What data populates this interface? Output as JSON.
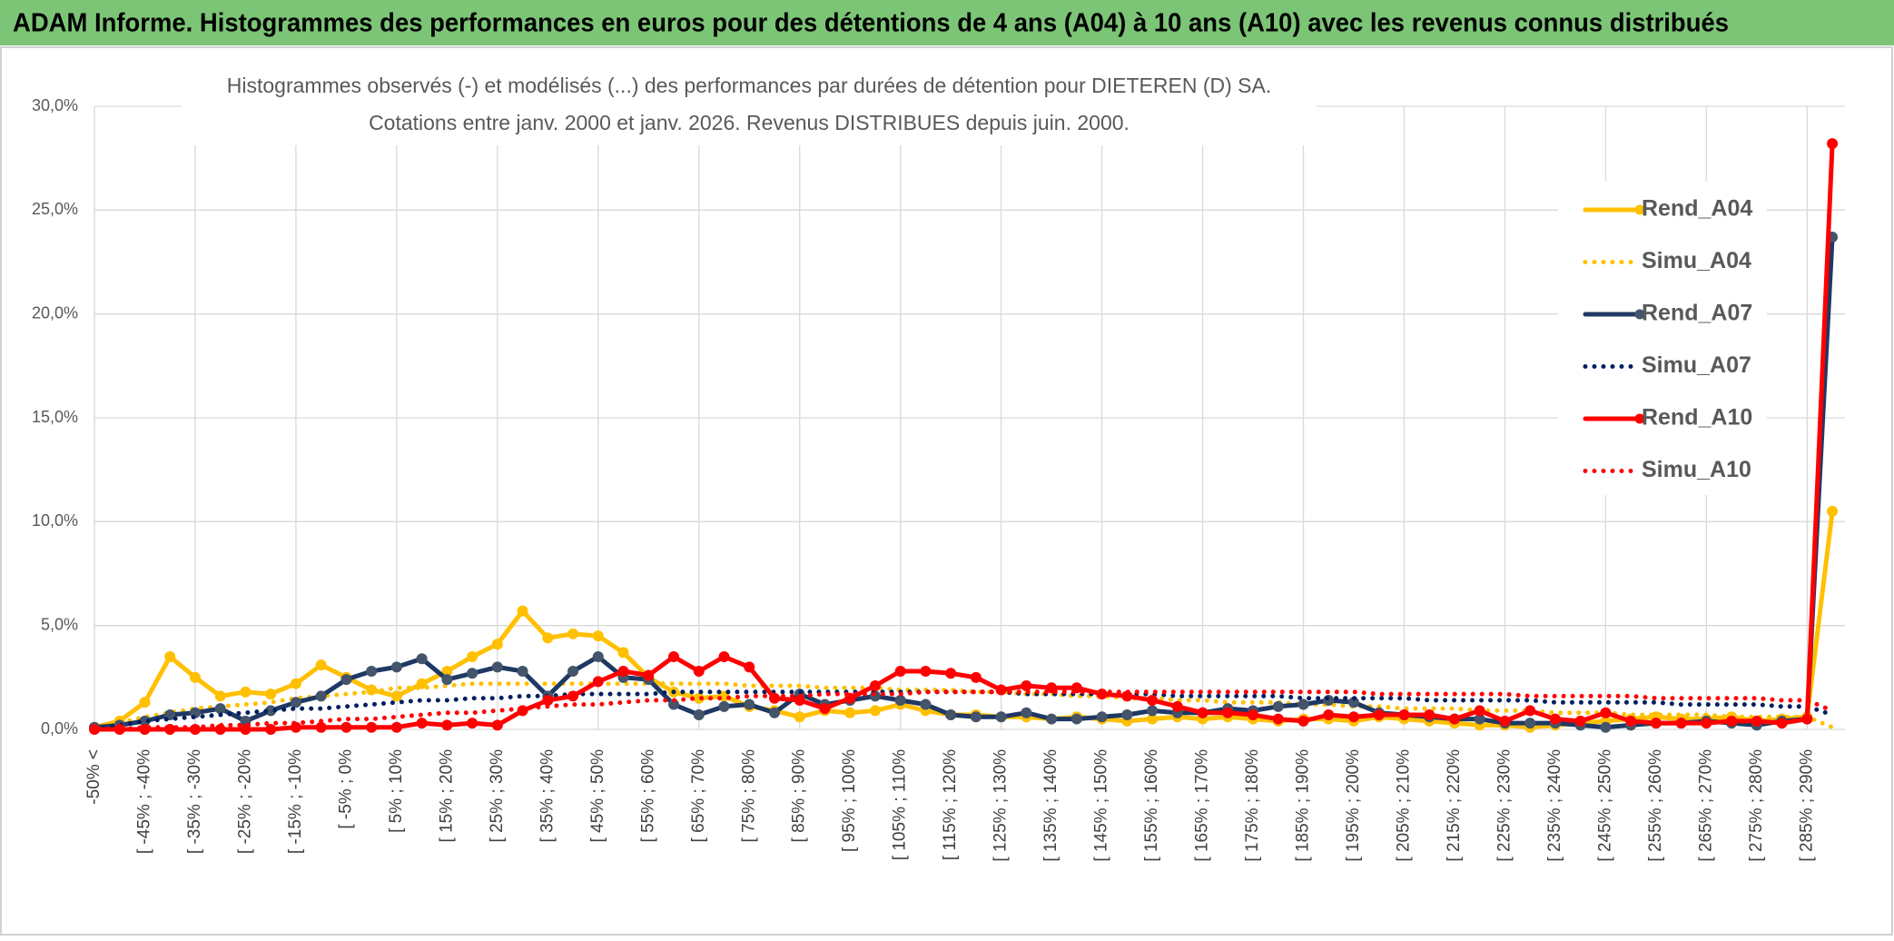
{
  "chart_data": {
    "type": "line",
    "title": "ADAM Informe. Histogrammes des performances en euros pour des détentions de 4 ans (A04) à 10 ans (A10) avec les revenus connus distribués",
    "subtitle": [
      "Histogrammes observés (-) et modélisés (...) des performances par durées de détention pour DIETEREN (D) SA.",
      "Cotations entre janv. 2000 et janv. 2026. Revenus DISTRIBUES depuis juin. 2000."
    ],
    "categories": [
      "-50% <",
      null,
      "[ -45% ; -40%",
      null,
      "[ -35% ; -30%",
      null,
      "[ -25% ; -20%",
      null,
      "[ -15% ; -10%",
      null,
      "[ -5% ; 0%",
      null,
      "[ 5% ; 10%",
      null,
      "[ 15% ; 20%",
      null,
      "[ 25% ; 30%",
      null,
      "[ 35% ; 40%",
      null,
      "[ 45% ; 50%",
      null,
      "[ 55% ; 60%",
      null,
      "[ 65% ; 70%",
      null,
      "[ 75% ; 80%",
      null,
      "[ 85% ; 90%",
      null,
      "[ 95% ; 100%",
      null,
      "[ 105% ; 110%",
      null,
      "[ 115% ; 120%",
      null,
      "[ 125% ; 130%",
      null,
      "[ 135% ; 140%",
      null,
      "[ 145% ; 150%",
      null,
      "[ 155% ; 160%",
      null,
      "[ 165% ; 170%",
      null,
      "[ 175% ; 180%",
      null,
      "[ 185% ; 190%",
      null,
      "[ 195% ; 200%",
      null,
      "[ 205% ; 210%",
      null,
      "[ 215% ; 220%",
      null,
      "[ 225% ; 230%",
      null,
      "[ 235% ; 240%",
      null,
      "[ 245% ; 250%",
      null,
      "[ 255% ; 260%",
      null,
      "[ 265% ; 270%",
      null,
      "[ 275% ; 280%",
      null,
      "[ 285% ; 290%",
      null
    ],
    "ylim": [
      0,
      30
    ],
    "yticks": [
      {
        "value": 0,
        "label": "0,0%"
      },
      {
        "value": 5,
        "label": "5,0%"
      },
      {
        "value": 10,
        "label": "10,0%"
      },
      {
        "value": 15,
        "label": "15,0%"
      },
      {
        "value": 20,
        "label": "20,0%"
      },
      {
        "value": 25,
        "label": "25,0%"
      },
      {
        "value": 30,
        "label": "30,0%"
      }
    ],
    "grid": true,
    "legend": "right",
    "series": [
      {
        "name": "Rend_A04",
        "color": "#ffc000",
        "style": "solid",
        "markers": true,
        "values": [
          0.1,
          0.4,
          1.3,
          3.5,
          2.5,
          1.6,
          1.8,
          1.7,
          2.2,
          3.1,
          2.5,
          1.9,
          1.6,
          2.2,
          2.8,
          3.5,
          4.1,
          5.7,
          4.4,
          4.6,
          4.5,
          3.7,
          2.5,
          1.8,
          1.5,
          1.6,
          1.1,
          0.9,
          0.6,
          0.9,
          0.8,
          0.9,
          1.2,
          0.9,
          0.7,
          0.7,
          0.6,
          0.6,
          0.5,
          0.6,
          0.5,
          0.4,
          0.5,
          0.6,
          0.5,
          0.6,
          0.5,
          0.4,
          0.5,
          0.5,
          0.4,
          0.6,
          0.5,
          0.4,
          0.3,
          0.2,
          0.2,
          0.1,
          0.2,
          0.3,
          0.4,
          0.5,
          0.6,
          0.5,
          0.5,
          0.6,
          0.4,
          0.5,
          0.6,
          10.5
        ]
      },
      {
        "name": "Simu_A04",
        "color": "#ffc000",
        "style": "dotted",
        "markers": false,
        "values": [
          0.0,
          0.3,
          0.6,
          0.8,
          1.0,
          1.1,
          1.2,
          1.3,
          1.5,
          1.6,
          1.7,
          1.8,
          2.0,
          2.0,
          2.1,
          2.2,
          2.2,
          2.2,
          2.2,
          2.2,
          2.2,
          2.2,
          2.2,
          2.2,
          2.2,
          2.2,
          2.1,
          2.1,
          2.1,
          2.0,
          2.0,
          2.0,
          1.9,
          1.9,
          1.9,
          1.8,
          1.8,
          1.7,
          1.7,
          1.6,
          1.6,
          1.5,
          1.5,
          1.4,
          1.4,
          1.3,
          1.3,
          1.3,
          1.2,
          1.2,
          1.1,
          1.1,
          1.0,
          1.0,
          1.0,
          0.9,
          0.9,
          0.9,
          0.8,
          0.8,
          0.8,
          0.7,
          0.7,
          0.7,
          0.7,
          0.6,
          0.6,
          0.6,
          0.6,
          0.1
        ]
      },
      {
        "name": "Rend_A07",
        "color": "#1f3864",
        "style": "solid",
        "markers": true,
        "values": [
          0.1,
          0.2,
          0.4,
          0.7,
          0.8,
          1.0,
          0.4,
          0.9,
          1.3,
          1.6,
          2.4,
          2.8,
          3.0,
          3.4,
          2.4,
          2.7,
          3.0,
          2.8,
          1.6,
          2.8,
          3.5,
          2.5,
          2.4,
          1.2,
          0.7,
          1.1,
          1.2,
          0.8,
          1.7,
          1.2,
          1.4,
          1.6,
          1.4,
          1.2,
          0.7,
          0.6,
          0.6,
          0.8,
          0.5,
          0.5,
          0.6,
          0.7,
          0.9,
          0.8,
          0.8,
          1.0,
          0.9,
          1.1,
          1.2,
          1.4,
          1.3,
          0.8,
          0.7,
          0.6,
          0.5,
          0.5,
          0.3,
          0.3,
          0.3,
          0.2,
          0.1,
          0.2,
          0.3,
          0.3,
          0.4,
          0.3,
          0.2,
          0.4,
          0.5,
          23.7
        ]
      },
      {
        "name": "Simu_A07",
        "color": "#002060",
        "style": "dotted",
        "markers": false,
        "values": [
          0.0,
          0.2,
          0.4,
          0.5,
          0.6,
          0.7,
          0.8,
          0.9,
          1.0,
          1.0,
          1.1,
          1.2,
          1.3,
          1.4,
          1.4,
          1.5,
          1.5,
          1.6,
          1.6,
          1.7,
          1.7,
          1.7,
          1.7,
          1.8,
          1.8,
          1.8,
          1.8,
          1.8,
          1.8,
          1.8,
          1.8,
          1.8,
          1.8,
          1.8,
          1.8,
          1.8,
          1.8,
          1.7,
          1.7,
          1.7,
          1.7,
          1.7,
          1.7,
          1.6,
          1.6,
          1.6,
          1.6,
          1.6,
          1.5,
          1.5,
          1.5,
          1.5,
          1.5,
          1.4,
          1.4,
          1.4,
          1.4,
          1.4,
          1.3,
          1.3,
          1.3,
          1.3,
          1.3,
          1.2,
          1.2,
          1.2,
          1.2,
          1.1,
          1.1,
          0.7
        ]
      },
      {
        "name": "Rend_A10",
        "color": "#ff0000",
        "style": "solid",
        "markers": true,
        "values": [
          0.0,
          0.0,
          0.0,
          0.0,
          0.0,
          0.0,
          0.0,
          0.0,
          0.1,
          0.1,
          0.1,
          0.1,
          0.1,
          0.3,
          0.2,
          0.3,
          0.2,
          0.9,
          1.4,
          1.6,
          2.3,
          2.8,
          2.6,
          3.5,
          2.8,
          3.5,
          3.0,
          1.5,
          1.4,
          1.0,
          1.5,
          2.1,
          2.8,
          2.8,
          2.7,
          2.5,
          1.9,
          2.1,
          2.0,
          2.0,
          1.7,
          1.6,
          1.4,
          1.1,
          0.8,
          0.8,
          0.7,
          0.5,
          0.4,
          0.7,
          0.6,
          0.7,
          0.7,
          0.7,
          0.5,
          0.9,
          0.4,
          0.9,
          0.5,
          0.4,
          0.8,
          0.4,
          0.3,
          0.3,
          0.3,
          0.4,
          0.4,
          0.3,
          0.5,
          28.2
        ]
      },
      {
        "name": "Simu_A10",
        "color": "#ff0000",
        "style": "dotted",
        "markers": false,
        "values": [
          0.0,
          0.0,
          0.1,
          0.1,
          0.1,
          0.2,
          0.2,
          0.3,
          0.3,
          0.4,
          0.5,
          0.5,
          0.6,
          0.7,
          0.8,
          0.8,
          0.9,
          1.0,
          1.1,
          1.2,
          1.2,
          1.3,
          1.4,
          1.4,
          1.5,
          1.5,
          1.6,
          1.6,
          1.6,
          1.7,
          1.7,
          1.7,
          1.7,
          1.8,
          1.8,
          1.8,
          1.8,
          1.8,
          1.8,
          1.8,
          1.8,
          1.8,
          1.8,
          1.8,
          1.8,
          1.8,
          1.8,
          1.8,
          1.8,
          1.8,
          1.8,
          1.7,
          1.7,
          1.7,
          1.7,
          1.7,
          1.7,
          1.6,
          1.6,
          1.6,
          1.6,
          1.6,
          1.5,
          1.5,
          1.5,
          1.5,
          1.5,
          1.4,
          1.4,
          0.9
        ]
      }
    ]
  }
}
